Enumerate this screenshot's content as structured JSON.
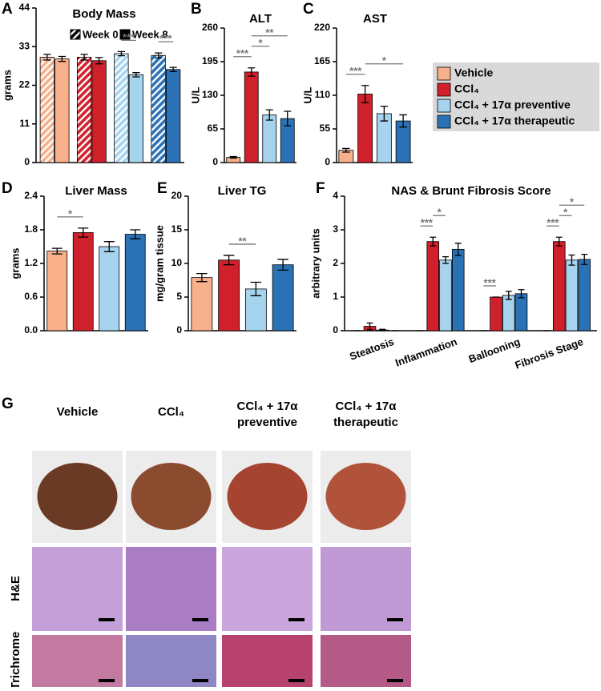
{
  "chart_data": [
    {
      "type": "bar",
      "letter": "A",
      "title": "Body Mass",
      "ylabel": "grams",
      "ylim": [
        0,
        44
      ],
      "yticks": [
        0,
        11,
        22,
        33,
        44
      ],
      "colors": [
        "#f7b08a",
        "#d0202c",
        "#a6d4ee",
        "#2a72b5"
      ],
      "series": [
        {
          "name": "Week 0",
          "pattern": "hatched",
          "values": [
            30,
            30,
            31,
            30.5
          ],
          "errors": [
            0.8,
            0.8,
            0.6,
            0.7
          ]
        },
        {
          "name": "Week 8",
          "pattern": "solid",
          "values": [
            29.5,
            29,
            25,
            26.5
          ],
          "errors": [
            0.7,
            0.9,
            0.6,
            0.6
          ]
        }
      ],
      "significance": [
        {
          "label": "***",
          "group": 2
        },
        {
          "label": "***",
          "group": 3
        }
      ]
    },
    {
      "type": "bar",
      "letter": "B",
      "title": "ALT",
      "ylabel": "U/L",
      "ylim": [
        0,
        260
      ],
      "yticks": [
        0,
        65,
        130,
        195,
        260
      ],
      "colors": [
        "#f7b08a",
        "#d0202c",
        "#a6d4ee",
        "#2a72b5"
      ],
      "values": [
        10,
        175,
        92,
        85
      ],
      "errors": [
        1.5,
        8,
        10,
        14
      ],
      "significance": [
        {
          "label": "***",
          "from": 0,
          "to": 1
        },
        {
          "label": "*",
          "from": 1,
          "to": 2
        },
        {
          "label": "**",
          "from": 1,
          "to": 3
        }
      ]
    },
    {
      "type": "bar",
      "letter": "C",
      "title": "AST",
      "ylabel": "U/L",
      "ylim": [
        0,
        220
      ],
      "yticks": [
        0,
        55,
        110,
        165,
        220
      ],
      "colors": [
        "#f7b08a",
        "#d0202c",
        "#a6d4ee",
        "#2a72b5"
      ],
      "values": [
        20,
        112,
        80,
        68
      ],
      "errors": [
        3,
        14,
        12,
        10
      ],
      "significance": [
        {
          "label": "***",
          "from": 0,
          "to": 1
        },
        {
          "label": "*",
          "from": 1,
          "to": 3
        }
      ]
    },
    {
      "type": "bar",
      "letter": "D",
      "title": "Liver Mass",
      "ylabel": "grams",
      "ylim": [
        0,
        2.4
      ],
      "yticks": [
        {
          "value": 0,
          "label": "0.0"
        },
        0.6,
        1.2,
        1.8,
        2.4
      ],
      "colors": [
        "#f7b08a",
        "#d0202c",
        "#a6d4ee",
        "#2a72b5"
      ],
      "values": [
        1.42,
        1.75,
        1.5,
        1.72
      ],
      "errors": [
        0.05,
        0.08,
        0.09,
        0.08
      ],
      "significance": [
        {
          "label": "*",
          "from": 0,
          "to": 1
        }
      ]
    },
    {
      "type": "bar",
      "letter": "E",
      "title": "Liver TG",
      "ylabel": "mg/gram tissue",
      "ylim": [
        0,
        20
      ],
      "yticks": [
        0,
        5,
        10,
        15,
        20
      ],
      "colors": [
        "#f7b08a",
        "#d0202c",
        "#a6d4ee",
        "#2a72b5"
      ],
      "values": [
        7.9,
        10.5,
        6.2,
        9.8
      ],
      "errors": [
        0.6,
        0.7,
        1.0,
        0.8
      ],
      "significance": [
        {
          "label": "**",
          "from": 1,
          "to": 2
        }
      ]
    },
    {
      "type": "bar",
      "letter": "F",
      "title": "NAS & Brunt Fibrosis Score",
      "ylabel": "arbitrary units",
      "ylim": [
        0,
        4
      ],
      "yticks": [
        0,
        1,
        2,
        3,
        4
      ],
      "categories": [
        "Steatosis",
        "Inflammation",
        "Ballooning",
        "Fibrosis Stage"
      ],
      "series": [
        {
          "color": "#f7b08a",
          "values": [
            0,
            0,
            0,
            0
          ],
          "errors": [
            0,
            0,
            0,
            0
          ]
        },
        {
          "color": "#d0202c",
          "values": [
            0.13,
            2.65,
            1.0,
            2.65
          ],
          "errors": [
            0.1,
            0.13,
            0,
            0.13
          ]
        },
        {
          "color": "#a6d4ee",
          "values": [
            0.02,
            2.1,
            1.05,
            2.1
          ],
          "errors": [
            0.02,
            0.1,
            0.12,
            0.15
          ]
        },
        {
          "color": "#2a72b5",
          "values": [
            0,
            2.42,
            1.1,
            2.12
          ],
          "errors": [
            0,
            0.18,
            0.12,
            0.15
          ]
        }
      ],
      "significance": [
        {
          "label": "***",
          "category": 1,
          "from": 0,
          "to": 1
        },
        {
          "label": "*",
          "category": 1,
          "from": 1,
          "to": 2
        },
        {
          "label": "***",
          "category": 2,
          "from": 0,
          "to": 1
        },
        {
          "label": "***",
          "category": 3,
          "from": 0,
          "to": 1
        },
        {
          "label": "*",
          "category": 3,
          "from": 1,
          "to": 2
        },
        {
          "label": "*",
          "category": 3,
          "from": 1,
          "to": 3
        }
      ]
    }
  ],
  "legend": {
    "entries": [
      {
        "label": "Vehicle",
        "color": "#f7b08a"
      },
      {
        "label": "CCl₄",
        "color": "#d0202c"
      },
      {
        "label": "CCl₄ + 17α preventive",
        "color": "#a6d4ee"
      },
      {
        "label": "CCl₄ + 17α therapeutic",
        "color": "#2a72b5"
      }
    ]
  },
  "panel_g": {
    "letter": "G",
    "columns": [
      [
        "Vehicle"
      ],
      [
        "CCl₄"
      ],
      [
        "CCl₄ + 17α",
        "preventive"
      ],
      [
        "CCl₄ + 17α",
        "therapeutic"
      ]
    ],
    "rows": [
      "H&E",
      "Trichrome"
    ]
  }
}
